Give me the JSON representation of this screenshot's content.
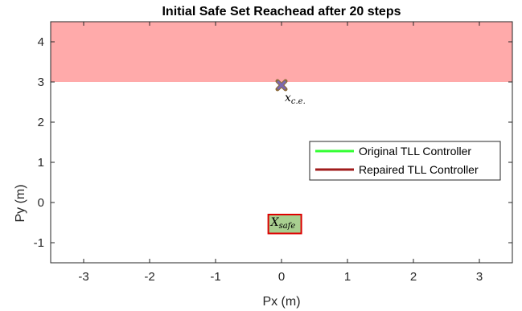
{
  "chart_data": {
    "type": "scatter",
    "title": "Initial Safe Set Reachead after 20 steps",
    "xlabel": "Px (m)",
    "ylabel": "Py (m)",
    "xlim": [
      -3.5,
      3.5
    ],
    "ylim": [
      -1.5,
      4.5
    ],
    "xticks": [
      -3,
      -2,
      -1,
      0,
      1,
      2,
      3
    ],
    "yticks": [
      -1,
      0,
      1,
      2,
      3,
      4
    ],
    "grid": false,
    "legend_position": "center-right",
    "unsafe_region": {
      "x": [
        -3.5,
        3.5
      ],
      "y": [
        3.0,
        4.5
      ],
      "color": "#ffaaaa"
    },
    "safe_set": {
      "label_main": "X",
      "label_sub": "safe",
      "x": [
        -0.2,
        0.3
      ],
      "y": [
        -0.77,
        -0.3
      ],
      "fill": "#a8cf90",
      "edge": "#dd0000"
    },
    "counterexample": {
      "label_main": "x",
      "label_sub": "c.e.",
      "x": 0.0,
      "y": 2.92,
      "fill": "#7b68b0",
      "edge": "#8a6a3a"
    },
    "series": [
      {
        "name": "Original TLL Controller",
        "color": "#33ff33"
      },
      {
        "name": "Repaired TLL Controller",
        "color": "#a01c1c"
      }
    ]
  }
}
